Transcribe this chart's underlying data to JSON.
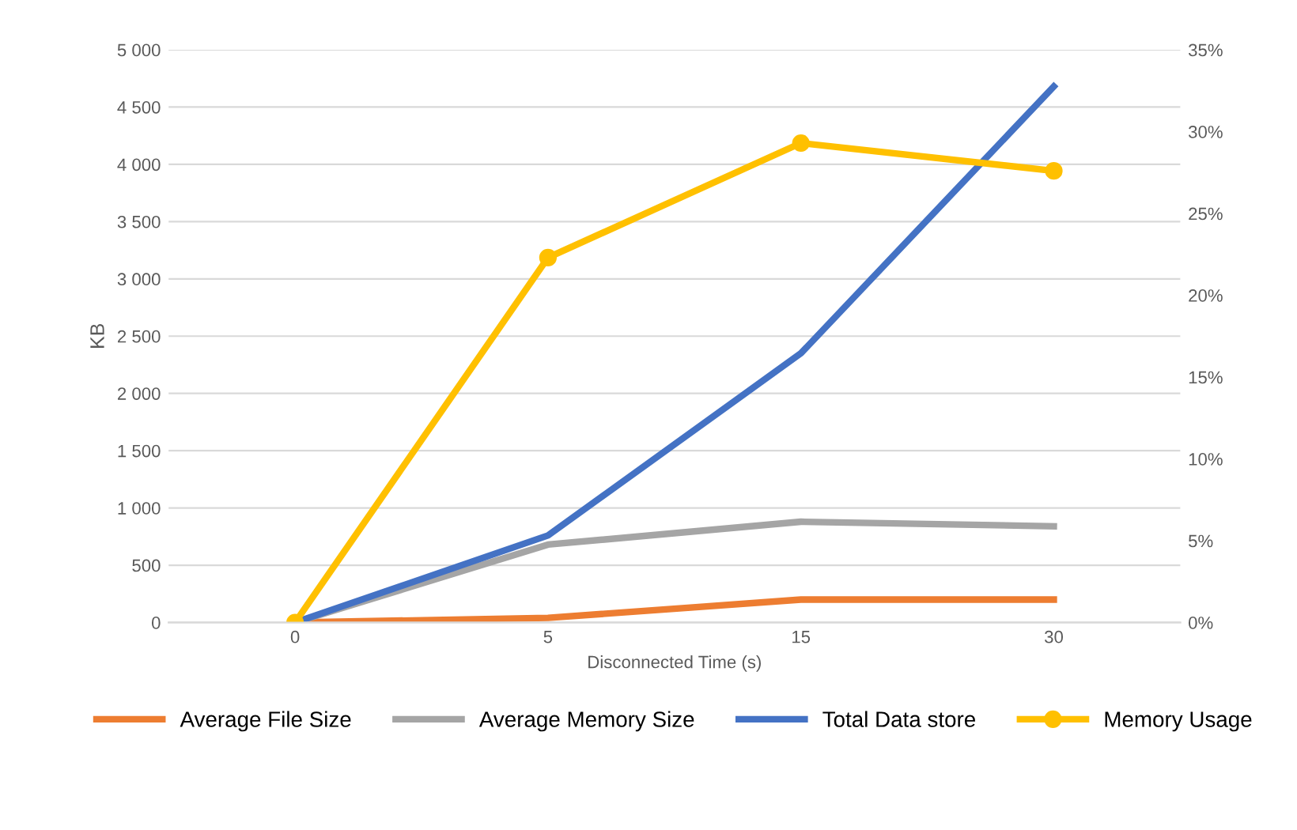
{
  "chart_data": {
    "type": "line",
    "xlabel": "Disconnected Time (s)",
    "ylabel": "KB",
    "categories": [
      "0",
      "5",
      "15",
      "30"
    ],
    "series": [
      {
        "name": "Average File Size",
        "color": "#ed7d31",
        "values": [
          0,
          40,
          200,
          200
        ]
      },
      {
        "name": "Average Memory Size",
        "color": "#a5a5a5",
        "values": [
          0,
          680,
          880,
          840
        ]
      },
      {
        "name": "Total Data store",
        "color": "#4472c4",
        "values": [
          0,
          760,
          2350,
          4680
        ]
      },
      {
        "name": "Memory Usage",
        "color": "#ffc000",
        "values": [
          0,
          22.3,
          29.3,
          27.6
        ],
        "axis": "y2",
        "marker": "circle"
      }
    ],
    "ylim": [
      0,
      5000
    ],
    "yticks": [
      0,
      500,
      {
        "value": 1000,
        "label": "1 000"
      },
      {
        "value": 1500,
        "label": "1 500"
      },
      {
        "value": 2000,
        "label": "2 000"
      },
      {
        "value": 2500,
        "label": "2 500"
      },
      {
        "value": 3000,
        "label": "3 000"
      },
      {
        "value": 3500,
        "label": "3 500"
      },
      {
        "value": 4000,
        "label": "4 000"
      },
      {
        "value": 4500,
        "label": "4 500"
      },
      {
        "value": 5000,
        "label": "5 000"
      }
    ],
    "y2lim": [
      0,
      35
    ],
    "y2ticks": [
      {
        "value": 0,
        "label": "0%"
      },
      {
        "value": 5,
        "label": "5%"
      },
      {
        "value": 10,
        "label": "10%"
      },
      {
        "value": 15,
        "label": "15%"
      },
      {
        "value": 20,
        "label": "20%"
      },
      {
        "value": 25,
        "label": "25%"
      },
      {
        "value": 30,
        "label": "30%"
      },
      {
        "value": 35,
        "label": "35%"
      }
    ],
    "grid": "y",
    "legend": "bottom"
  }
}
